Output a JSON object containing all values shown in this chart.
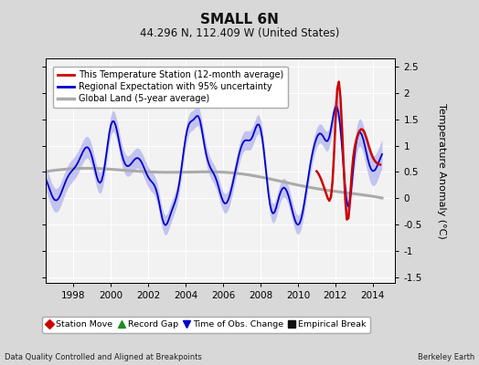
{
  "title": "SMALL 6N",
  "subtitle": "44.296 N, 112.409 W (United States)",
  "ylabel": "Temperature Anomaly (°C)",
  "xlabel_bottom_left": "Data Quality Controlled and Aligned at Breakpoints",
  "xlabel_bottom_right": "Berkeley Earth",
  "xlim": [
    1996.5,
    2015.2
  ],
  "ylim": [
    -1.6,
    2.65
  ],
  "yticks": [
    -1.5,
    -1.0,
    -0.5,
    0.0,
    0.5,
    1.0,
    1.5,
    2.0,
    2.5
  ],
  "xticks": [
    1998,
    2000,
    2002,
    2004,
    2006,
    2008,
    2010,
    2012,
    2014
  ],
  "bg_color": "#d8d8d8",
  "plot_bg_color": "#f2f2f2",
  "grid_color": "#ffffff",
  "station_color": "#cc0000",
  "regional_color": "#0000cc",
  "regional_fill_color": "#aaaaee",
  "global_color": "#aaaaaa",
  "legend1_entries": [
    {
      "label": "This Temperature Station (12-month average)",
      "color": "#cc0000",
      "lw": 2
    },
    {
      "label": "Regional Expectation with 95% uncertainty",
      "color": "#0000cc",
      "lw": 2
    },
    {
      "label": "Global Land (5-year average)",
      "color": "#aaaaaa",
      "lw": 2.5
    }
  ],
  "legend2_entries": [
    {
      "label": "Station Move",
      "color": "#cc0000",
      "marker": "D"
    },
    {
      "label": "Record Gap",
      "color": "#228B22",
      "marker": "^"
    },
    {
      "label": "Time of Obs. Change",
      "color": "#0000cc",
      "marker": "v"
    },
    {
      "label": "Empirical Break",
      "color": "#111111",
      "marker": "s"
    }
  ]
}
